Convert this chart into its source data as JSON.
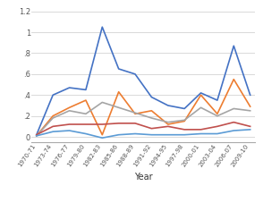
{
  "x_labels": [
    "1970-71",
    "1973-74",
    "1976-77",
    "1979-80",
    "1982-83",
    "1985-86",
    "1988-89",
    "1991-92",
    "1994-95",
    "1997-98",
    "2000-01",
    "2003-04",
    "2006-07",
    "2009-10"
  ],
  "series": {
    "blue": [
      0.02,
      0.4,
      0.47,
      0.45,
      1.05,
      0.65,
      0.6,
      0.38,
      0.3,
      0.27,
      0.42,
      0.35,
      0.87,
      0.4
    ],
    "orange": [
      0.01,
      0.2,
      0.28,
      0.35,
      0.02,
      0.43,
      0.22,
      0.25,
      0.12,
      0.15,
      0.4,
      0.22,
      0.55,
      0.29
    ],
    "gray": [
      0.01,
      0.18,
      0.25,
      0.22,
      0.33,
      0.28,
      0.23,
      0.18,
      0.14,
      0.16,
      0.28,
      0.2,
      0.27,
      0.25
    ],
    "red": [
      0.02,
      0.1,
      0.12,
      0.12,
      0.12,
      0.13,
      0.13,
      0.08,
      0.1,
      0.07,
      0.07,
      0.1,
      0.14,
      0.1
    ],
    "blue2": [
      0.01,
      0.05,
      0.06,
      0.03,
      -0.01,
      0.02,
      0.03,
      0.02,
      0.02,
      0.02,
      0.03,
      0.03,
      0.06,
      0.07
    ]
  },
  "colors": {
    "blue": "#4472c4",
    "orange": "#ed7d31",
    "gray": "#a5a5a5",
    "red": "#c0504d",
    "blue2": "#5b9bd5"
  },
  "ylim": [
    -0.05,
    1.25
  ],
  "yticks": [
    0,
    0.2,
    0.4,
    0.6,
    0.8,
    1.0,
    1.2
  ],
  "ytick_labels": [
    "0",
    ".2",
    ".4",
    ".6",
    ".8",
    "1",
    "1.2"
  ],
  "xlabel": "Year",
  "bg_color": "#ffffff",
  "grid_color": "#d3d3d3",
  "linewidth": 1.2
}
